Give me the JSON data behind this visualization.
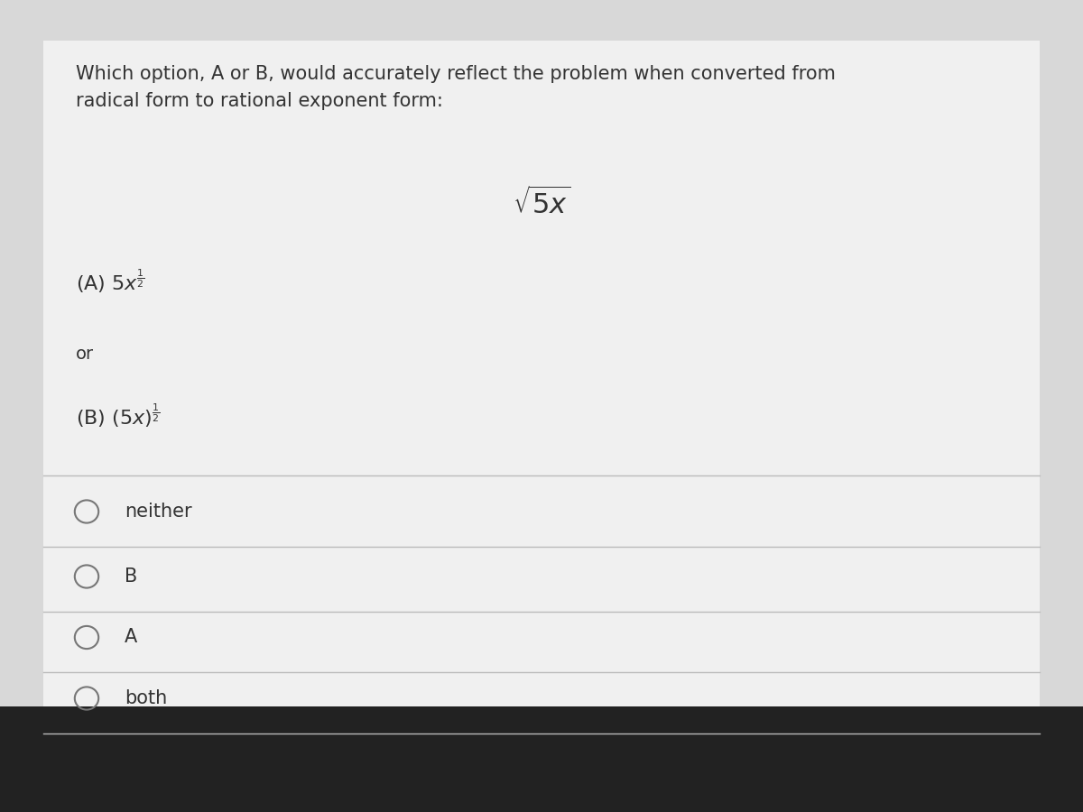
{
  "bg_color": "#d8d8d8",
  "card_color": "#f0f0f0",
  "text_color": "#333333",
  "title_text": "Which option, A or B, would accurately reflect the problem when converted from\nradical form to rational exponent form:",
  "radical_expr": "$\\sqrt{5x}$",
  "option_a": "(A) $5x^{\\frac{1}{2}}$",
  "option_or": "or",
  "option_b": "(B) $(5x)^{\\frac{1}{2}}$",
  "choices": [
    "neither",
    "B",
    "A",
    "both"
  ],
  "title_fontsize": 15,
  "option_fontsize": 16,
  "choice_fontsize": 15,
  "radical_fontsize": 22,
  "separator_color": "#bbbbbb",
  "circle_color": "#777777",
  "bottom_dark": "#222222"
}
